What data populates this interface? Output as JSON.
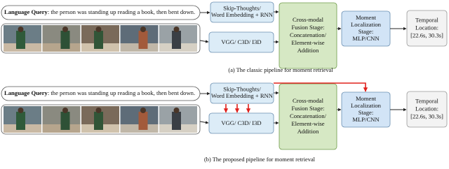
{
  "panels": [
    {
      "query": {
        "label": "Language Query",
        "text": ": the person was standing up reading a book, then bent down."
      },
      "text_encoder": [
        "Skip-Thoughts/",
        "Word Embedding + RNN"
      ],
      "video_encoder": "VGG/ C3D/ I3D",
      "fusion": [
        "Cross-modal",
        "Fusion Stage:",
        "Concatenation/",
        "Element-wise",
        "Addition"
      ],
      "localization": [
        "Moment",
        "Localization",
        "Stage:",
        "MLP/CNN"
      ],
      "output": [
        "Temporal",
        "Location:",
        "[22.6s, 30.3s]"
      ],
      "caption": "(a) The classic pipeline for moment retrieval"
    },
    {
      "query": {
        "label": "Language Query",
        "text": ": the person was standing up reading a book, then bent down."
      },
      "text_encoder": [
        "Skip-Thoughts/",
        "Word Embedding + RNN"
      ],
      "video_encoder": "VGG/ C3D/ I3D",
      "fusion": [
        "Cross-modal",
        "Fusion Stage:",
        "Concatenation/",
        "Element-wise",
        "Addition"
      ],
      "localization": [
        "Moment",
        "Localization",
        "Stage:",
        "MLP/CNN"
      ],
      "output": [
        "Temporal",
        "Location:",
        "[22.6s, 30.3s]"
      ],
      "caption": "(b) The proposed pipeline for moment retrieval"
    }
  ]
}
